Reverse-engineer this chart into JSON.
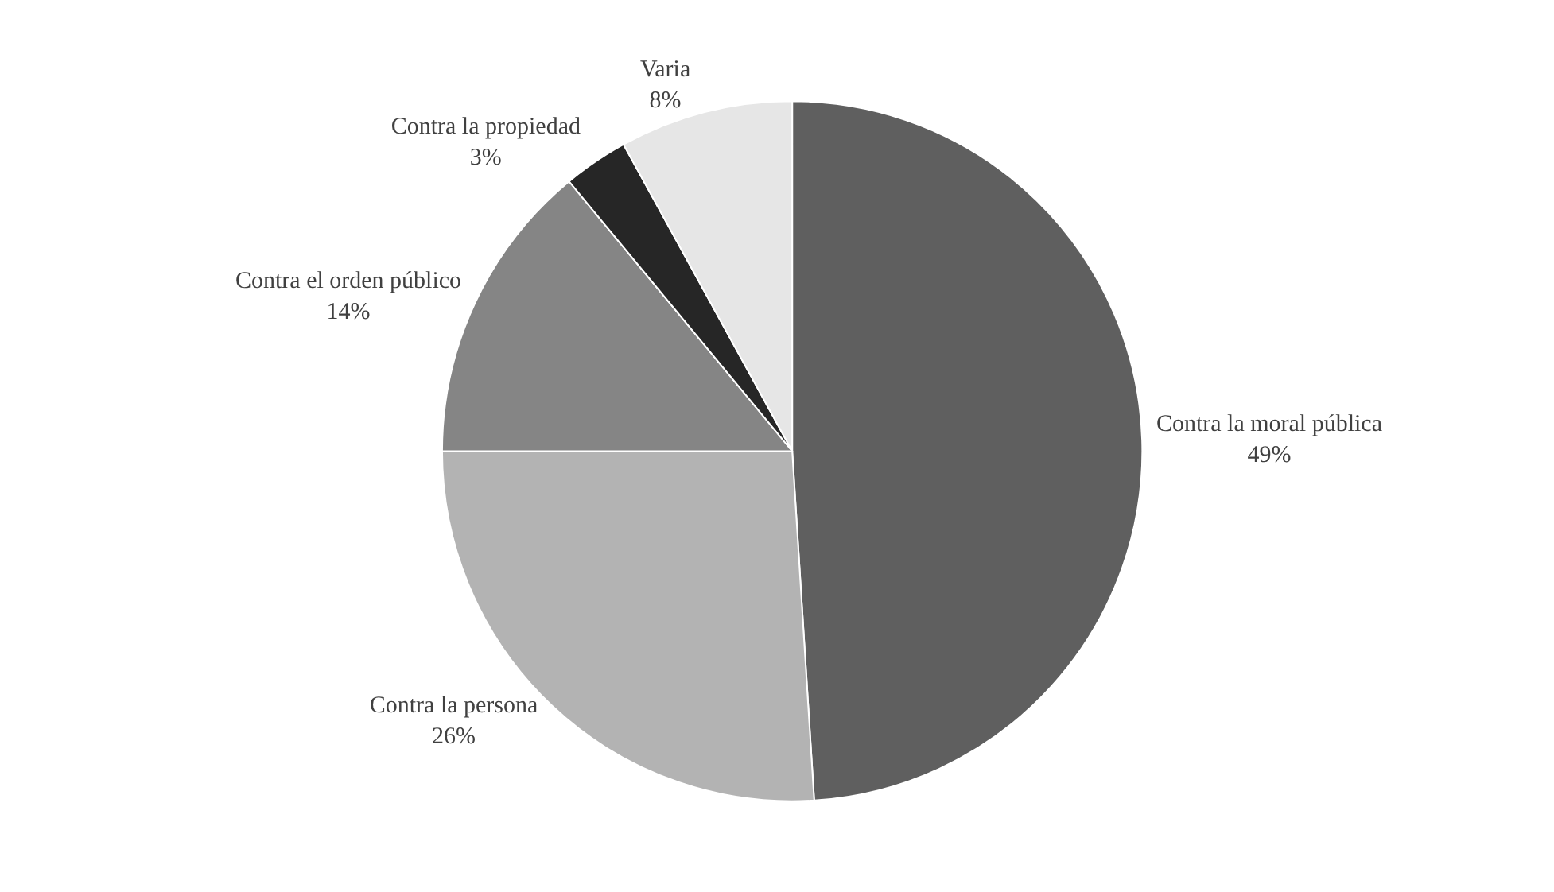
{
  "chart_data": {
    "type": "pie",
    "categories": [
      "Contra la moral pública",
      "Contra la persona",
      "Contra el orden público",
      "Contra la propiedad",
      "Varia"
    ],
    "values": [
      49,
      26,
      14,
      3,
      8
    ],
    "value_labels": [
      "49%",
      "26%",
      "14%",
      "3%",
      "8%"
    ],
    "colors": [
      "#5f5f5f",
      "#b3b3b3",
      "#858585",
      "#262626",
      "#e6e6e6"
    ],
    "legend": false
  }
}
